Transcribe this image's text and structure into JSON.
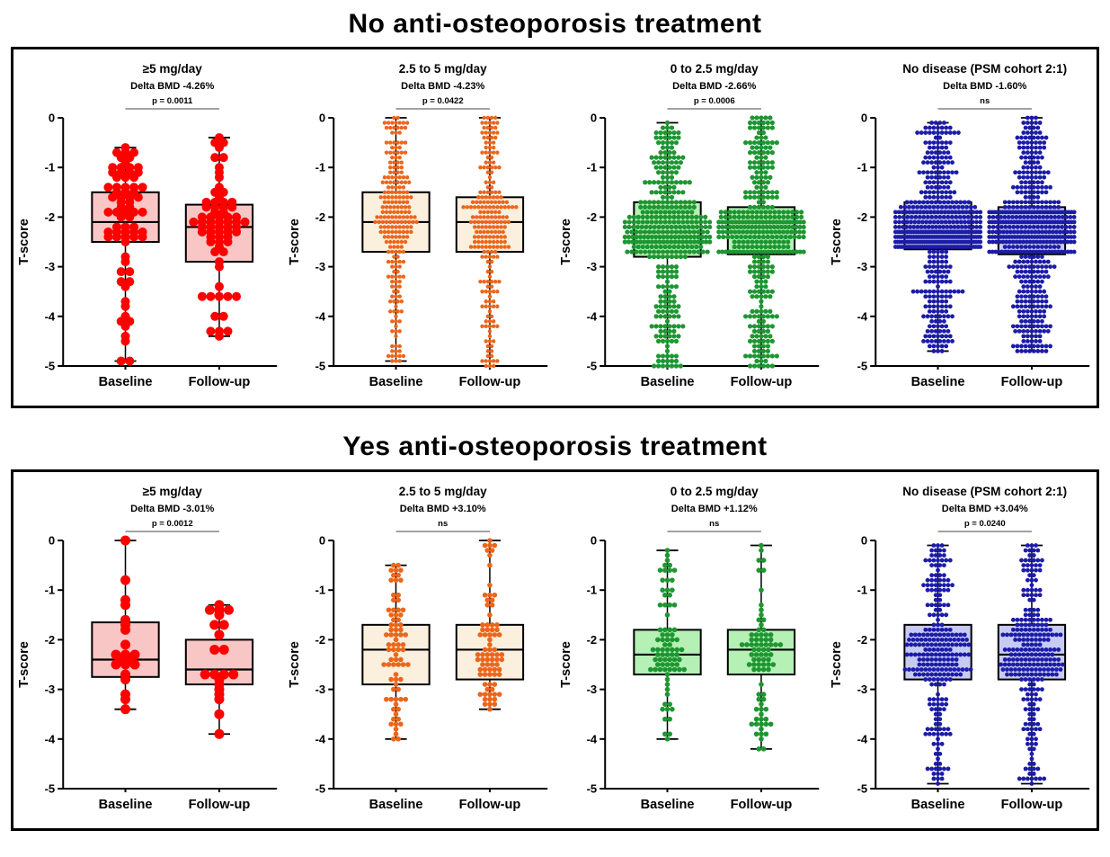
{
  "figure": {
    "ylabel": "T-score",
    "categories": [
      "Baseline",
      "Follow-up"
    ],
    "ylim": [
      -5,
      0
    ],
    "yticks": [
      0,
      -1,
      -2,
      -3,
      -4,
      -5
    ]
  },
  "panels": [
    {
      "title": "No anti-osteoporosis treatment",
      "chart_indexes": [
        0,
        1,
        2,
        3
      ]
    },
    {
      "title": "Yes anti-osteoporosis treatment",
      "chart_indexes": [
        4,
        5,
        6,
        7
      ]
    }
  ],
  "chart_data": [
    {
      "type": "boxplot-scatter",
      "panel": "No anti-osteoporosis treatment",
      "title": "≥5 mg/day",
      "subtitle": "Delta BMD -4.26%",
      "significance": "p = 0.0011",
      "ylabel": "T-score",
      "ylim": [
        -5,
        0
      ],
      "yticks": [
        0,
        -1,
        -2,
        -3,
        -4,
        -5
      ],
      "categories": [
        "Baseline",
        "Follow-up"
      ],
      "colors": {
        "point": "#FF0000",
        "box_fill": "#F9C6C6",
        "box_stroke": "#000000"
      },
      "point_radius": 5,
      "n_points": [
        72,
        68
      ],
      "series": [
        {
          "name": "Baseline",
          "min": -4.9,
          "q1": -2.5,
          "median": -2.1,
          "q3": -1.5,
          "max": -0.6
        },
        {
          "name": "Follow-up",
          "min": -4.4,
          "q1": -2.9,
          "median": -2.2,
          "q3": -1.75,
          "max": -0.4
        }
      ]
    },
    {
      "type": "boxplot-scatter",
      "panel": "No anti-osteoporosis treatment",
      "title": "2.5 to 5 mg/day",
      "subtitle": "Delta BMD -4.23%",
      "significance": "p = 0.0422",
      "ylabel": "T-score",
      "ylim": [
        -5,
        0
      ],
      "yticks": [
        0,
        -1,
        -2,
        -3,
        -4,
        -5
      ],
      "categories": [
        "Baseline",
        "Follow-up"
      ],
      "colors": {
        "point": "#EB661C",
        "box_fill": "#FBEFDD",
        "box_stroke": "#000000"
      },
      "point_radius": 2.2,
      "n_points": [
        230,
        230
      ],
      "series": [
        {
          "name": "Baseline",
          "min": -4.9,
          "q1": -2.7,
          "median": -2.1,
          "q3": -1.5,
          "max": 0.0
        },
        {
          "name": "Follow-up",
          "min": -5.0,
          "q1": -2.7,
          "median": -2.1,
          "q3": -1.6,
          "max": 0.0
        }
      ]
    },
    {
      "type": "boxplot-scatter",
      "panel": "No anti-osteoporosis treatment",
      "title": "0 to 2.5 mg/day",
      "subtitle": "Delta BMD -2.66%",
      "significance": "p = 0.0006",
      "ylabel": "T-score",
      "ylim": [
        -5,
        0
      ],
      "yticks": [
        0,
        -1,
        -2,
        -3,
        -4,
        -5
      ],
      "categories": [
        "Baseline",
        "Follow-up"
      ],
      "colors": {
        "point": "#1E9632",
        "box_fill": "#B5F0B5",
        "box_stroke": "#000000"
      },
      "point_radius": 2.6,
      "n_points": [
        380,
        380
      ],
      "series": [
        {
          "name": "Baseline",
          "min": -5.0,
          "q1": -2.8,
          "median": -2.3,
          "q3": -1.7,
          "max": -0.1
        },
        {
          "name": "Follow-up",
          "min": -5.0,
          "q1": -2.75,
          "median": -2.3,
          "q3": -1.8,
          "max": 0.0
        }
      ]
    },
    {
      "type": "boxplot-scatter",
      "panel": "No anti-osteoporosis treatment",
      "title": "No disease (PSM cohort 2:1)",
      "subtitle": "Delta BMD -1.60%",
      "significance": "ns",
      "ylabel": "T-score",
      "ylim": [
        -5,
        0
      ],
      "yticks": [
        0,
        -1,
        -2,
        -3,
        -4,
        -5
      ],
      "categories": [
        "Baseline",
        "Follow-up"
      ],
      "colors": {
        "point": "#1C1CA8",
        "box_fill": "#C7CBF4",
        "box_stroke": "#000000"
      },
      "point_radius": 2.4,
      "n_points": [
        520,
        520
      ],
      "series": [
        {
          "name": "Baseline",
          "min": -4.7,
          "q1": -2.65,
          "median": -2.3,
          "q3": -1.7,
          "max": -0.1
        },
        {
          "name": "Follow-up",
          "min": -4.7,
          "q1": -2.75,
          "median": -2.3,
          "q3": -1.8,
          "max": 0.0
        }
      ]
    },
    {
      "type": "boxplot-scatter",
      "panel": "Yes anti-osteoporosis treatment",
      "title": "≥5 mg/day",
      "subtitle": "Delta BMD -3.01%",
      "significance": "p = 0.0012",
      "ylabel": "T-score",
      "ylim": [
        -5,
        0
      ],
      "yticks": [
        0,
        -1,
        -2,
        -3,
        -4,
        -5
      ],
      "categories": [
        "Baseline",
        "Follow-up"
      ],
      "colors": {
        "point": "#FF0000",
        "box_fill": "#F9C6C6",
        "box_stroke": "#000000"
      },
      "point_radius": 5.5,
      "n_points": [
        21,
        21
      ],
      "series": [
        {
          "name": "Baseline",
          "min": -3.4,
          "q1": -2.75,
          "median": -2.4,
          "q3": -1.65,
          "max": 0.0
        },
        {
          "name": "Follow-up",
          "min": -3.9,
          "q1": -2.9,
          "median": -2.6,
          "q3": -2.0,
          "max": -1.3
        }
      ]
    },
    {
      "type": "boxplot-scatter",
      "panel": "Yes anti-osteoporosis treatment",
      "title": "2.5 to 5 mg/day",
      "subtitle": "Delta BMD +3.10%",
      "significance": "ns",
      "ylabel": "T-score",
      "ylim": [
        -5,
        0
      ],
      "yticks": [
        0,
        -1,
        -2,
        -3,
        -4,
        -5
      ],
      "categories": [
        "Baseline",
        "Follow-up"
      ],
      "colors": {
        "point": "#EB661C",
        "box_fill": "#FBEFDD",
        "box_stroke": "#000000"
      },
      "point_radius": 2.8,
      "n_points": [
        78,
        78
      ],
      "series": [
        {
          "name": "Baseline",
          "min": -4.0,
          "q1": -2.9,
          "median": -2.2,
          "q3": -1.7,
          "max": -0.5
        },
        {
          "name": "Follow-up",
          "min": -3.4,
          "q1": -2.8,
          "median": -2.2,
          "q3": -1.7,
          "max": 0.0
        }
      ]
    },
    {
      "type": "boxplot-scatter",
      "panel": "Yes anti-osteoporosis treatment",
      "title": "0 to 2.5 mg/day",
      "subtitle": "Delta BMD +1.12%",
      "significance": "ns",
      "ylabel": "T-score",
      "ylim": [
        -5,
        0
      ],
      "yticks": [
        0,
        -1,
        -2,
        -3,
        -4,
        -5
      ],
      "categories": [
        "Baseline",
        "Follow-up"
      ],
      "colors": {
        "point": "#1E9632",
        "box_fill": "#B5F0B5",
        "box_stroke": "#000000"
      },
      "point_radius": 2.8,
      "n_points": [
        82,
        82
      ],
      "series": [
        {
          "name": "Baseline",
          "min": -4.0,
          "q1": -2.7,
          "median": -2.3,
          "q3": -1.8,
          "max": -0.2
        },
        {
          "name": "Follow-up",
          "min": -4.2,
          "q1": -2.7,
          "median": -2.2,
          "q3": -1.8,
          "max": -0.1
        }
      ]
    },
    {
      "type": "boxplot-scatter",
      "panel": "Yes anti-osteoporosis treatment",
      "title": "No disease (PSM cohort 2:1)",
      "subtitle": "Delta BMD +3.04%",
      "significance": "p = 0.0240",
      "ylabel": "T-score",
      "ylim": [
        -5,
        0
      ],
      "yticks": [
        0,
        -1,
        -2,
        -3,
        -4,
        -5
      ],
      "categories": [
        "Baseline",
        "Follow-up"
      ],
      "colors": {
        "point": "#1C1CA8",
        "box_fill": "#C7CBF4",
        "box_stroke": "#000000"
      },
      "point_radius": 2.4,
      "n_points": [
        260,
        260
      ],
      "series": [
        {
          "name": "Baseline",
          "min": -4.9,
          "q1": -2.8,
          "median": -2.3,
          "q3": -1.7,
          "max": -0.1
        },
        {
          "name": "Follow-up",
          "min": -4.9,
          "q1": -2.8,
          "median": -2.3,
          "q3": -1.7,
          "max": -0.1
        }
      ]
    }
  ]
}
